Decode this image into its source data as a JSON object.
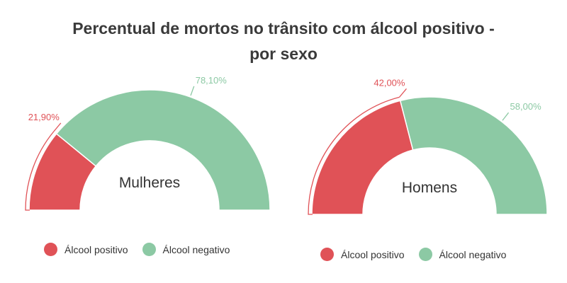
{
  "title_line1": "Percentual de mortos no trânsito com álcool positivo -",
  "title_line2": "por sexo",
  "colors": {
    "positive": "#e05257",
    "negative": "#8cc9a4"
  },
  "chart_data": [
    {
      "type": "pie",
      "variant": "semicircle-gauge",
      "label": "Mulheres",
      "categories": [
        "Álcool positivo",
        "Álcool negativo"
      ],
      "values": [
        21.9,
        78.1
      ],
      "data_labels": [
        "21,90%",
        "78,10%"
      ]
    },
    {
      "type": "pie",
      "variant": "semicircle-gauge",
      "label": "Homens",
      "categories": [
        "Álcool positivo",
        "Álcool negativo"
      ],
      "values": [
        42.0,
        58.0
      ],
      "data_labels": [
        "42,00%",
        "58,00%"
      ]
    }
  ],
  "legend": [
    [
      {
        "label": "Álcool positivo",
        "color": "#e05257"
      },
      {
        "label": "Álcool negativo",
        "color": "#8cc9a4"
      }
    ],
    [
      {
        "label": "Álcool positivo",
        "color": "#e05257"
      },
      {
        "label": "Álcool negativo",
        "color": "#8cc9a4"
      }
    ]
  ]
}
